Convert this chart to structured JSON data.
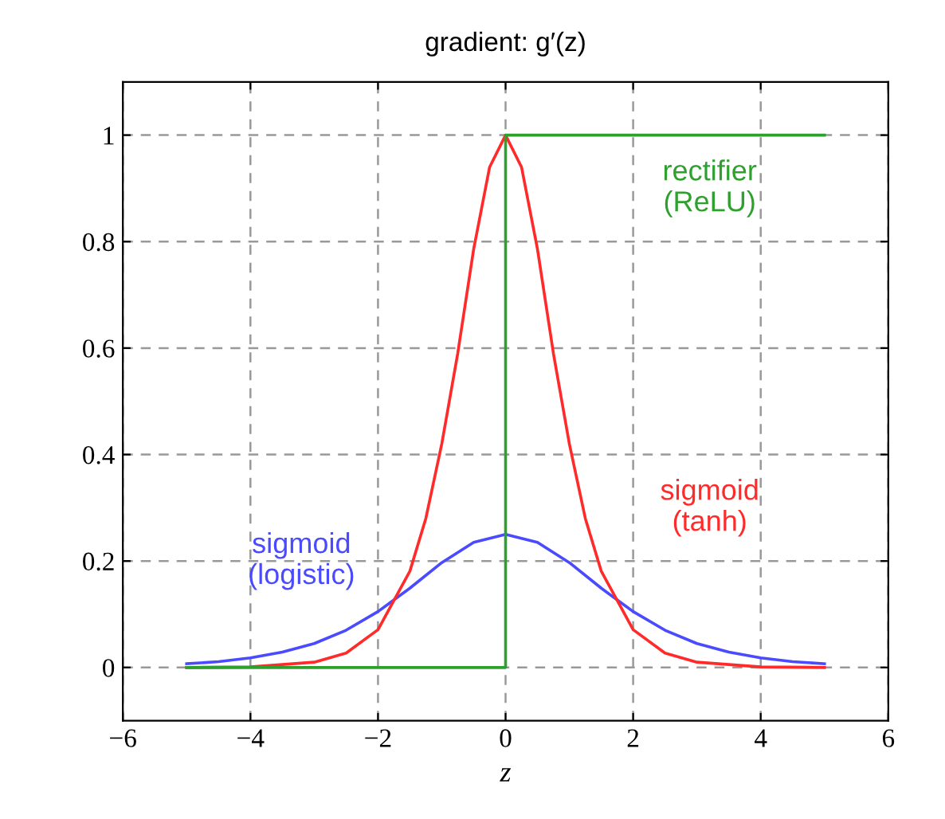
{
  "chart_data": {
    "type": "line",
    "title": "gradient: g′(z)",
    "xlabel": "z",
    "xlim": [
      -6,
      6
    ],
    "ylim": [
      -0.1,
      1.1
    ],
    "xticks": [
      {
        "value": -6,
        "label": "−6"
      },
      {
        "value": -4,
        "label": "−4"
      },
      {
        "value": -2,
        "label": "−2"
      },
      0,
      2,
      4,
      6
    ],
    "yticks": [
      0,
      0.2,
      0.4,
      0.6,
      0.8,
      1
    ],
    "grid": true,
    "line_style": "solid",
    "marker": "none",
    "legend": false,
    "series": [
      {
        "name": "sigmoid\n(logistic)",
        "color": "#4a4aff",
        "x": [
          -5,
          -4.5,
          -4,
          -3.5,
          -3,
          -2.5,
          -2,
          -1.5,
          -1,
          -0.5,
          0,
          0.5,
          1,
          1.5,
          2,
          2.5,
          3,
          3.5,
          4,
          4.5,
          5
        ],
        "values": [
          0.007,
          0.011,
          0.018,
          0.029,
          0.045,
          0.07,
          0.105,
          0.149,
          0.197,
          0.235,
          0.25,
          0.235,
          0.197,
          0.149,
          0.105,
          0.07,
          0.045,
          0.029,
          0.018,
          0.011,
          0.007
        ]
      },
      {
        "name": "sigmoid\n(tanh)",
        "color": "#ff2a2a",
        "x": [
          -5,
          -4,
          -3,
          -2.5,
          -2,
          -1.5,
          -1.25,
          -1,
          -0.75,
          -0.5,
          -0.25,
          0,
          0.25,
          0.5,
          0.75,
          1,
          1.25,
          1.5,
          2,
          2.5,
          3,
          4,
          5
        ],
        "values": [
          0,
          0.001,
          0.01,
          0.027,
          0.071,
          0.181,
          0.28,
          0.42,
          0.59,
          0.786,
          0.94,
          1,
          0.94,
          0.786,
          0.59,
          0.42,
          0.28,
          0.181,
          0.071,
          0.027,
          0.01,
          0.001,
          0
        ]
      },
      {
        "name": "rectifier\n(ReLU)",
        "color": "#2ea02e",
        "x": [
          -5,
          0,
          0,
          5
        ],
        "values": [
          0,
          0,
          1,
          1
        ]
      }
    ]
  }
}
